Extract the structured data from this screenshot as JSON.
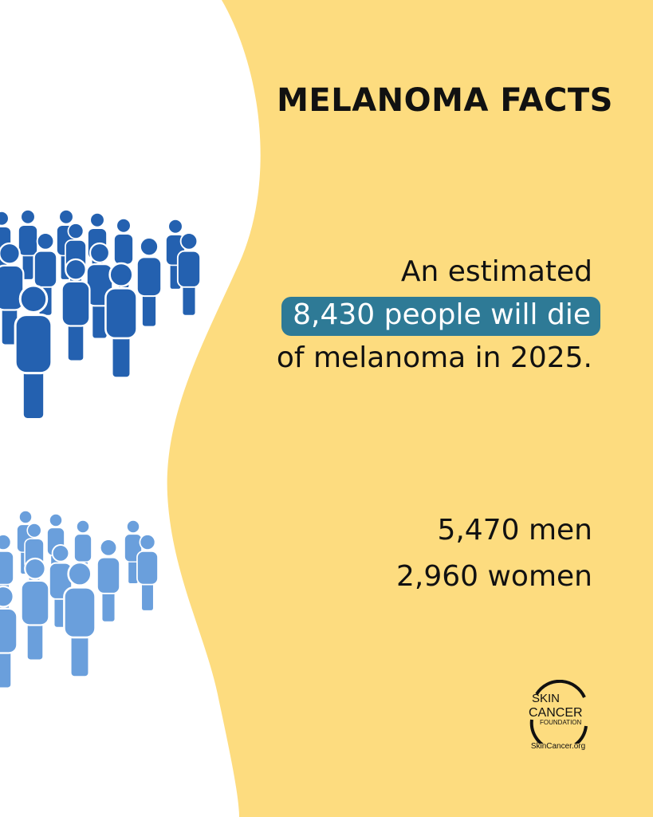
{
  "title": "MELANOMA FACTS",
  "stat": {
    "line1": "An estimated",
    "highlight": "8,430 people will die",
    "line3": "of melanoma in 2025."
  },
  "breakdown": {
    "men": "5,470 men",
    "women": "2,960 women"
  },
  "logo": {
    "text": "SKIN CANCER FOUNDATION",
    "url": "SkinCancer.org"
  },
  "colors": {
    "background_yellow": "#fddc7f",
    "men_figures": "#2461b0",
    "women_figures": "#6a9fdc",
    "highlight": "#2e7a96"
  },
  "icons": [
    "people-crowd-men",
    "people-crowd-women",
    "skin-cancer-foundation-logo"
  ]
}
